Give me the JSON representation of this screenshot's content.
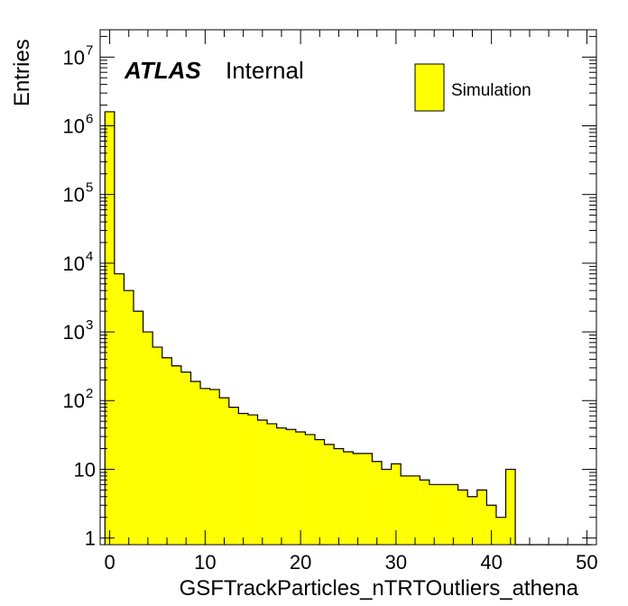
{
  "chart_data": {
    "type": "bar",
    "title": "",
    "xlabel": "GSFTrackParticles_nTRTOutliers_athena",
    "ylabel": "Entries",
    "yscale": "log",
    "xlim": [
      -1,
      51
    ],
    "ylim": [
      0.8,
      25000000
    ],
    "bin_width": 1,
    "bin_start": -0.5,
    "x_ticks": [
      0,
      10,
      20,
      30,
      40,
      50
    ],
    "x_tick_labels": [
      "0",
      "10",
      "20",
      "30",
      "40",
      "50"
    ],
    "y_tick_labels": [
      {
        "base": "1",
        "exp": "",
        "value": 1
      },
      {
        "base": "10",
        "exp": "",
        "value": 10
      },
      {
        "base": "10",
        "exp": "2",
        "value": 100
      },
      {
        "base": "10",
        "exp": "3",
        "value": 1000
      },
      {
        "base": "10",
        "exp": "4",
        "value": 10000
      },
      {
        "base": "10",
        "exp": "5",
        "value": 100000
      },
      {
        "base": "10",
        "exp": "6",
        "value": 1000000
      },
      {
        "base": "10",
        "exp": "7",
        "value": 10000000
      }
    ],
    "fill_color": "#ffff00",
    "line_color": "#000000",
    "legend_position": "top-right",
    "series": [
      {
        "name": "Simulation",
        "values": [
          1600000,
          7000,
          4000,
          2000,
          1000,
          600,
          420,
          320,
          260,
          190,
          150,
          145,
          110,
          80,
          65,
          62,
          52,
          46,
          40,
          38,
          35,
          32,
          27,
          23,
          20,
          18,
          17,
          17,
          13,
          10,
          12,
          8,
          8,
          7,
          6,
          6,
          6,
          5,
          4,
          5,
          3,
          2,
          10,
          0,
          0,
          0,
          0,
          0,
          0,
          0,
          0
        ]
      }
    ],
    "bin_centers_note": "",
    "atlas_label": "ATLAS",
    "atlas_status": "Internal"
  }
}
